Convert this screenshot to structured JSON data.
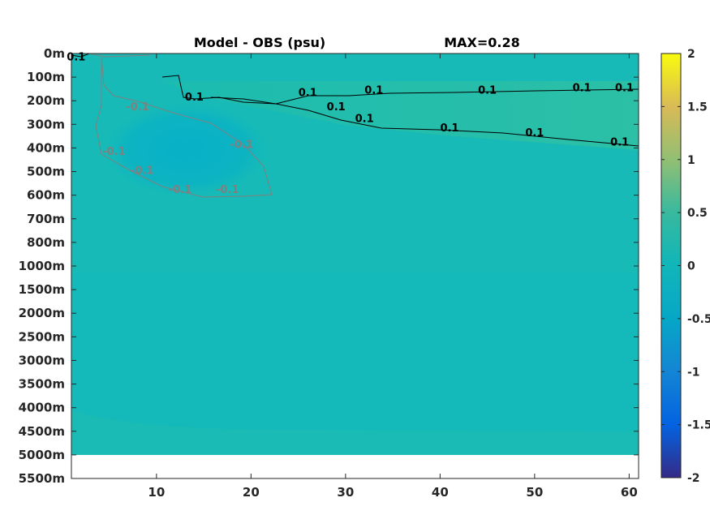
{
  "chart_data": {
    "type": "heatmap",
    "title": "Model - OBS (psu)",
    "max_label": "MAX=0.28",
    "xlabel": "",
    "ylabel": "",
    "xlim": [
      1,
      61
    ],
    "x_ticks": [
      10,
      20,
      30,
      40,
      50,
      60
    ],
    "y_tick_labels": [
      "0m",
      "100m",
      "200m",
      "300m",
      "400m",
      "500m",
      "600m",
      "700m",
      "800m",
      "1000m",
      "1500m",
      "2000m",
      "2500m",
      "3000m",
      "3500m",
      "4000m",
      "4500m",
      "5000m",
      "5500m"
    ],
    "colorbar": {
      "ticks": [
        2,
        1.5,
        1,
        0.5,
        0,
        -0.5,
        -1,
        -1.5,
        -2
      ],
      "tick_labels": [
        "2",
        "1.5",
        "1",
        "0.5",
        "0",
        "-0.5",
        "-1",
        "-1.5",
        "-2"
      ],
      "colormap": "parula",
      "range": [
        -2,
        2
      ]
    },
    "contour_levels": [
      0.1,
      -0.1
    ],
    "contour_labels": [
      {
        "text": "0.1",
        "color": "#000000",
        "x": 1.5,
        "depth_index": 0.3
      },
      {
        "text": "0.1",
        "color": "#000000",
        "x": 14,
        "depth_index": 2.0
      },
      {
        "text": "0.1",
        "color": "#000000",
        "x": 26,
        "depth_index": 1.8
      },
      {
        "text": "0.1",
        "color": "#000000",
        "x": 33,
        "depth_index": 1.7
      },
      {
        "text": "0.1",
        "color": "#000000",
        "x": 45,
        "depth_index": 1.7
      },
      {
        "text": "0.1",
        "color": "#000000",
        "x": 55,
        "depth_index": 1.6
      },
      {
        "text": "0.1",
        "color": "#000000",
        "x": 59.5,
        "depth_index": 1.6
      },
      {
        "text": "0.1",
        "color": "#000000",
        "x": 29,
        "depth_index": 2.4
      },
      {
        "text": "0.1",
        "color": "#000000",
        "x": 32,
        "depth_index": 2.9
      },
      {
        "text": "0.1",
        "color": "#000000",
        "x": 41,
        "depth_index": 3.3
      },
      {
        "text": "0.1",
        "color": "#000000",
        "x": 50,
        "depth_index": 3.5
      },
      {
        "text": "0.1",
        "color": "#000000",
        "x": 59,
        "depth_index": 3.9
      },
      {
        "text": "-0.1",
        "color": "#808080",
        "x": 8,
        "depth_index": 2.4
      },
      {
        "text": "-0.1",
        "color": "#808080",
        "x": 19,
        "depth_index": 4.0
      },
      {
        "text": "-0.1",
        "color": "#808080",
        "x": 5.5,
        "depth_index": 4.3
      },
      {
        "text": "-0.1",
        "color": "#808080",
        "x": 8.5,
        "depth_index": 5.1
      },
      {
        "text": "-0.1",
        "color": "#808080",
        "x": 12.5,
        "depth_index": 5.9
      },
      {
        "text": "-0.1",
        "color": "#808080",
        "x": 17.5,
        "depth_index": 5.9
      }
    ],
    "grid": false
  }
}
